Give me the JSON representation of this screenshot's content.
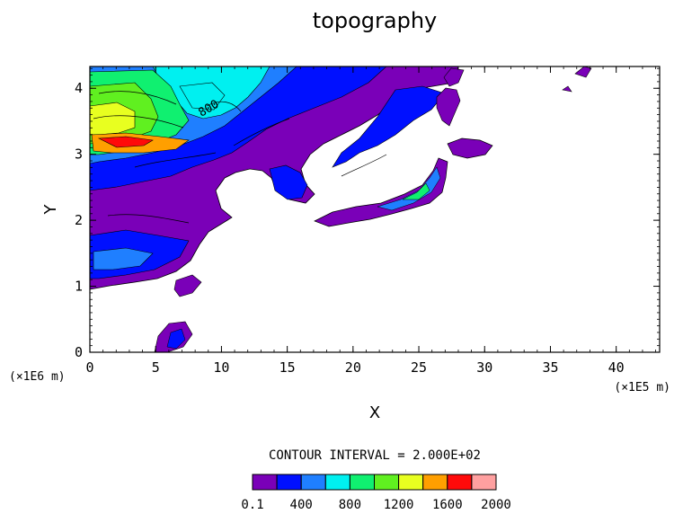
{
  "chart_data": {
    "type": "heatmap",
    "title": "topography",
    "xlabel": "X",
    "ylabel": "Y",
    "x_unit_label": "(×1E5 m)",
    "y_unit_label": "(×1E6 m)",
    "xlim": [
      0,
      43.3
    ],
    "ylim": [
      0,
      4.33
    ],
    "x_ticks": [
      "0",
      "5",
      "10",
      "15",
      "20",
      "25",
      "30",
      "35",
      "40"
    ],
    "y_ticks": [
      "0",
      "1",
      "2",
      "3",
      "4"
    ],
    "contour_label": "800",
    "legend_title": "CONTOUR INTERVAL = 2.000E+02",
    "legend_labels": [
      "0.1",
      "400",
      "800",
      "1200",
      "1600",
      "2000"
    ],
    "levels": [
      0.1,
      200,
      400,
      600,
      800,
      1000,
      1200,
      1400,
      1600,
      1800,
      2000
    ],
    "colors": [
      "#7a00b8",
      "#0010ff",
      "#1f7fff",
      "#00f0f0",
      "#10f070",
      "#60f020",
      "#e8ff20",
      "#ff9f00",
      "#ff0a0a",
      "#ffa0a0"
    ],
    "ocean_color": "#ffffff"
  }
}
